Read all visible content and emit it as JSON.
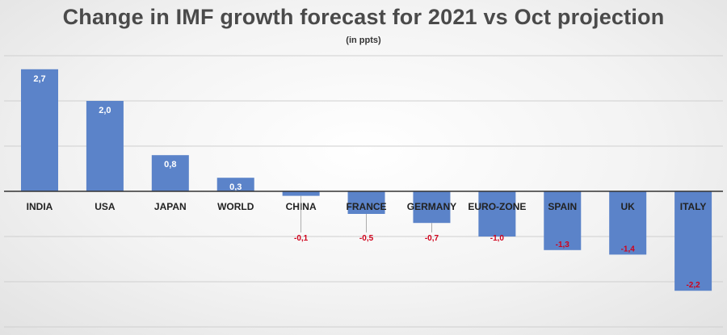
{
  "title": "Change in IMF growth forecast for 2021 vs Oct projection",
  "subtitle": "(in ppts)",
  "colors": {
    "bar": "#5b83c9",
    "negative_label": "#d0021b",
    "positive_label": "#ffffff",
    "grid": "#cfcfcf"
  },
  "chart_data": {
    "type": "bar",
    "title": "Change in IMF growth forecast for 2021 vs Oct projection",
    "subtitle": "(in ppts)",
    "categories": [
      "INDIA",
      "USA",
      "JAPAN",
      "WORLD",
      "CHINA",
      "FRANCE",
      "GERMANY",
      "EURO-ZONE",
      "SPAIN",
      "UK",
      "ITALY"
    ],
    "values": [
      2.7,
      2.0,
      0.8,
      0.3,
      -0.1,
      -0.5,
      -0.7,
      -1.0,
      -1.3,
      -1.4,
      -2.2
    ],
    "value_labels": [
      "2,7",
      "2,0",
      "0,8",
      "0,3",
      "-0,1",
      "-0,5",
      "-0,7",
      "-1,0",
      "-1,3",
      "-1,4",
      "-2,2"
    ],
    "ylim": [
      -3.0,
      3.0
    ],
    "gridlines": [
      -3,
      -2,
      -1,
      1,
      2,
      3
    ],
    "grid": true,
    "legend": "none"
  }
}
